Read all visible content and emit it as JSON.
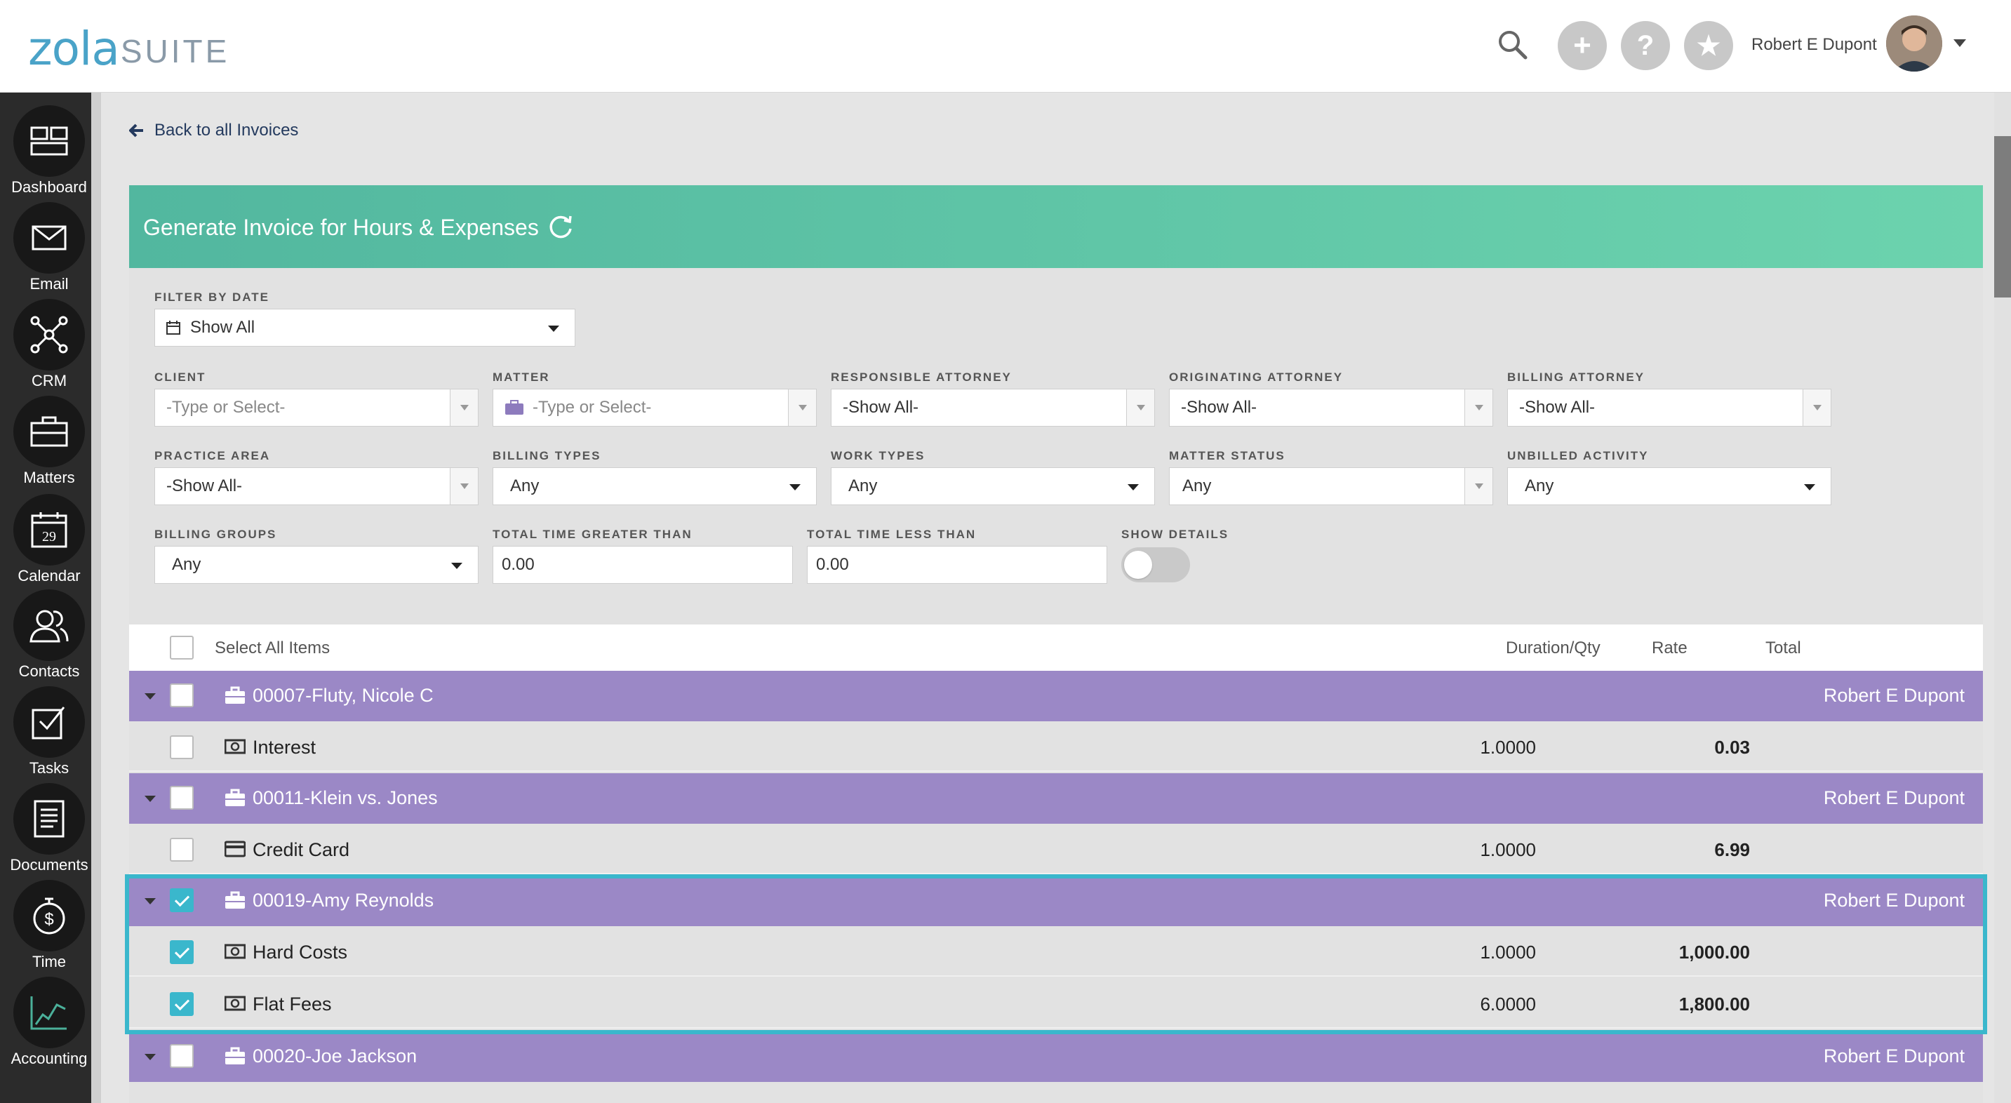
{
  "app": {
    "logo_main": "zola",
    "logo_sub": "SUITE",
    "user_name": "Robert E Dupont"
  },
  "sidebar": {
    "items": [
      {
        "label": "Dashboard",
        "icon": "dashboard-icon"
      },
      {
        "label": "Email",
        "icon": "envelope-icon"
      },
      {
        "label": "CRM",
        "icon": "network-icon"
      },
      {
        "label": "Matters",
        "icon": "briefcase-icon"
      },
      {
        "label": "Calendar",
        "icon": "calendar-icon",
        "day": "29"
      },
      {
        "label": "Contacts",
        "icon": "contacts-icon"
      },
      {
        "label": "Tasks",
        "icon": "checkbox-icon"
      },
      {
        "label": "Documents",
        "icon": "document-icon"
      },
      {
        "label": "Time",
        "icon": "stopwatch-icon"
      },
      {
        "label": "Accounting",
        "icon": "chart-icon"
      }
    ]
  },
  "back_link": "Back to all Invoices",
  "panel": {
    "title": "Generate Invoice for Hours & Expenses"
  },
  "filters": {
    "filter_by_date": {
      "label": "FILTER BY DATE",
      "value": "Show All"
    },
    "client": {
      "label": "CLIENT",
      "placeholder": "-Type or Select-"
    },
    "matter": {
      "label": "MATTER",
      "placeholder": "-Type or Select-"
    },
    "responsible_attorney": {
      "label": "RESPONSIBLE ATTORNEY",
      "value": "-Show All-"
    },
    "originating_attorney": {
      "label": "ORIGINATING ATTORNEY",
      "value": "-Show All-"
    },
    "billing_attorney": {
      "label": "BILLING ATTORNEY",
      "value": "-Show All-"
    },
    "practice_area": {
      "label": "PRACTICE AREA",
      "value": "-Show All-"
    },
    "billing_types": {
      "label": "BILLING TYPES",
      "value": "Any"
    },
    "work_types": {
      "label": "WORK TYPES",
      "value": "Any"
    },
    "matter_status": {
      "label": "MATTER STATUS",
      "value": "Any"
    },
    "unbilled_activity": {
      "label": "UNBILLED ACTIVITY",
      "value": "Any"
    },
    "billing_groups": {
      "label": "BILLING GROUPS",
      "value": "Any"
    },
    "total_time_greater": {
      "label": "TOTAL TIME GREATER THAN",
      "value": "0.00"
    },
    "total_time_less": {
      "label": "TOTAL TIME LESS THAN",
      "value": "0.00"
    },
    "show_details": {
      "label": "SHOW DETAILS",
      "on": false
    }
  },
  "table": {
    "select_all": "Select All Items",
    "col_duration": "Duration/Qty",
    "col_rate": "Rate",
    "col_total": "Total",
    "groups": [
      {
        "name": "00007-Fluty, Nicole C",
        "attorney": "Robert E Dupont",
        "checked": false,
        "items": [
          {
            "name": "Interest",
            "icon": "cash-icon",
            "qty": "1.0000",
            "rate": "0.03",
            "checked": false
          }
        ]
      },
      {
        "name": "00011-Klein vs. Jones",
        "attorney": "Robert E Dupont",
        "checked": false,
        "items": [
          {
            "name": "Credit Card",
            "icon": "credit-card-icon",
            "qty": "1.0000",
            "rate": "6.99",
            "checked": false
          }
        ]
      },
      {
        "name": "00019-Amy Reynolds",
        "attorney": "Robert E Dupont",
        "checked": true,
        "items": [
          {
            "name": "Hard Costs",
            "icon": "cash-icon",
            "qty": "1.0000",
            "rate": "1,000.00",
            "checked": true
          },
          {
            "name": "Flat Fees",
            "icon": "cash-icon",
            "qty": "6.0000",
            "rate": "1,800.00",
            "checked": true
          }
        ]
      },
      {
        "name": "00020-Joe Jackson",
        "attorney": "Robert E Dupont",
        "checked": false,
        "items": []
      }
    ]
  },
  "colors": {
    "header_teal": "#5cc4a6",
    "group_purple": "#9b88c6",
    "highlight_cyan": "#3ab7cc",
    "sidebar_dark": "#2b2b2b"
  }
}
